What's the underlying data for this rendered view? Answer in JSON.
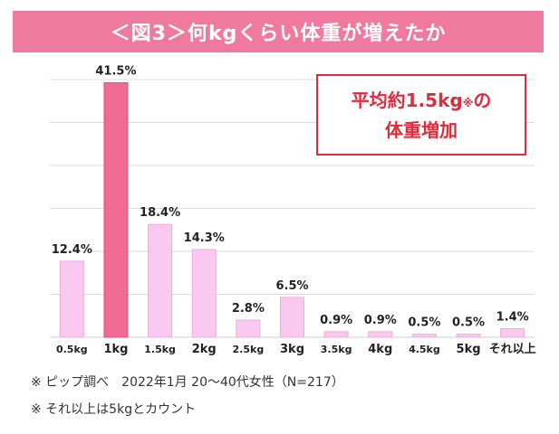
{
  "chart_data": {
    "type": "bar",
    "title": "＜図3＞何kgくらい体重が増えたか",
    "categories": [
      "0.5kg",
      "1kg",
      "1.5kg",
      "2kg",
      "2.5kg",
      "3kg",
      "3.5kg",
      "4kg",
      "4.5kg",
      "5kg",
      "それ以上"
    ],
    "values": [
      12.4,
      41.5,
      18.4,
      14.3,
      2.8,
      6.5,
      0.9,
      0.9,
      0.5,
      0.5,
      1.4
    ],
    "value_labels": [
      "12.4%",
      "41.5%",
      "18.4%",
      "14.3%",
      "2.8%",
      "6.5%",
      "0.9%",
      "0.9%",
      "0.5%",
      "0.5%",
      "1.4%"
    ],
    "highlight_category": "1kg",
    "unit": "%",
    "ylim": [
      0,
      42
    ],
    "grid": true,
    "colors": {
      "bar": "#fbc8f0",
      "bar_border": "#f2a9dd",
      "highlight": "#f06b94",
      "highlight_border": "#e0527f",
      "grid": "#dddddd",
      "banner": "#f07a9e",
      "callout": "#e02b3c"
    }
  },
  "callout": {
    "line1_main": "平均約1.5kg",
    "line1_mark": "※",
    "line1_tail": "の",
    "line2": "体重増加"
  },
  "notes": [
    "※ ピップ調べ　2022年1月 20〜40代女性（N=217）",
    "※ それ以上は5kgとカウント"
  ]
}
